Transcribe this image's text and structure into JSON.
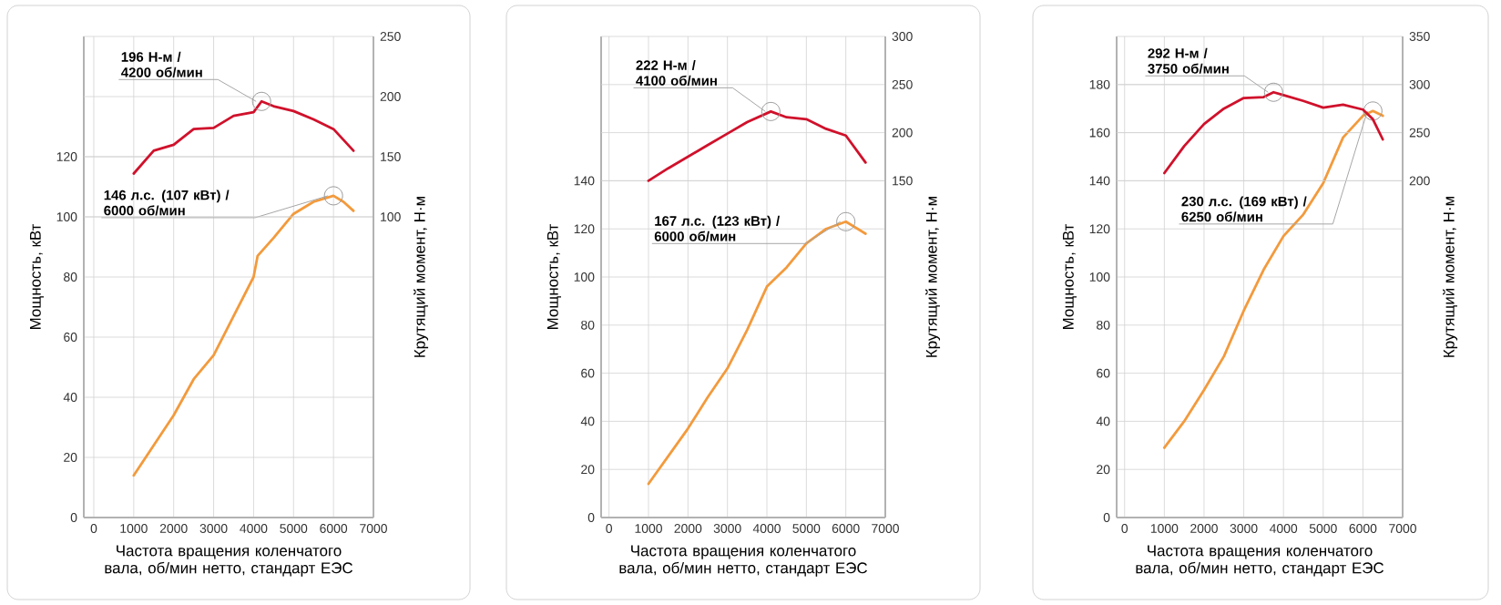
{
  "chart_data": [
    {
      "type": "line",
      "xlabel": "Частота вращения коленчатого вала, об/мин нетто, стандарт ЕЭС",
      "ylabel": "Мощность, кВт",
      "y2label": "Крутящий момент, Н·м",
      "xlim": [
        -250,
        7000
      ],
      "xticks": [
        0,
        1000,
        2000,
        3000,
        4000,
        5000,
        6000,
        7000
      ],
      "ylim": [
        0,
        160
      ],
      "yticks": [
        0,
        20,
        40,
        60,
        80,
        100,
        120
      ],
      "y2lim": [
        -150,
        250
      ],
      "y2ticks": [
        100,
        150,
        200,
        250
      ],
      "grid": true,
      "series": [
        {
          "color": "#d0112b",
          "axis": "y2",
          "x": [
            1000,
            1500,
            2000,
            2500,
            3000,
            3500,
            4000,
            4200,
            4500,
            5000,
            5500,
            6000,
            6500
          ],
          "values": [
            136,
            155,
            160,
            173,
            174,
            184,
            187,
            196,
            192,
            188,
            181,
            173,
            155
          ]
        },
        {
          "color": "#f39a3c",
          "x": [
            1000,
            1500,
            2000,
            2500,
            3000,
            3500,
            4000,
            4100,
            4500,
            5000,
            5500,
            6000,
            6250,
            6500
          ],
          "values": [
            14,
            24,
            34,
            46,
            54,
            67,
            80,
            87,
            93,
            101,
            105,
            107,
            105,
            102
          ]
        }
      ],
      "annotations": [
        "196 Н-м / 4200 об/мин",
        "146 л.с. (107 кВт) / 6000 об/мин"
      ]
    },
    {
      "type": "line",
      "xlabel": "Частота вращения коленчатого вала, об/мин нетто, стандарт ЕЭС",
      "ylabel": "Мощность, кВт",
      "y2label": "Крутящий момент, Н·м",
      "xlim": [
        -200,
        7000
      ],
      "xticks": [
        0,
        1000,
        2000,
        3000,
        4000,
        5000,
        6000,
        7000
      ],
      "ylim": [
        0,
        200
      ],
      "yticks": [
        0,
        20,
        40,
        60,
        80,
        100,
        120,
        140
      ],
      "y2lim": [
        -200,
        300
      ],
      "y2ticks": [
        150,
        200,
        250,
        300
      ],
      "grid": true,
      "series": [
        {
          "color": "#d0112b",
          "axis": "y2",
          "x": [
            1000,
            1500,
            2000,
            2500,
            3000,
            3500,
            4100,
            4500,
            5000,
            5500,
            6000,
            6500
          ],
          "values": [
            150,
            163,
            175,
            187,
            199,
            211,
            222,
            216,
            214,
            204,
            197,
            169
          ]
        },
        {
          "color": "#f39a3c",
          "x": [
            1000,
            2000,
            2500,
            3000,
            3500,
            4000,
            4500,
            5000,
            5500,
            6000,
            6500
          ],
          "values": [
            14,
            37,
            50,
            62,
            78,
            96,
            104,
            114,
            120,
            123,
            118
          ]
        }
      ],
      "annotations": [
        "222 Н-м / 4100 об/мин",
        "167 л.с. (123 кВт) / 6000 об/мин"
      ]
    },
    {
      "type": "line",
      "xlabel": "Частота вращения коленчатого вала, об/мин нетто, стандарт ЕЭС",
      "ylabel": "Мощность, кВт",
      "y2label": "Крутящий момент, Н·м",
      "xlim": [
        -200,
        7000
      ],
      "xticks": [
        0,
        1000,
        2000,
        3000,
        4000,
        5000,
        6000,
        7000
      ],
      "ylim": [
        0,
        200
      ],
      "yticks": [
        0,
        20,
        40,
        60,
        80,
        100,
        120,
        140,
        160,
        180
      ],
      "y2lim": [
        -150,
        350
      ],
      "y2ticks": [
        200,
        250,
        300,
        350
      ],
      "grid": true,
      "series": [
        {
          "color": "#d0112b",
          "axis": "y2",
          "x": [
            1000,
            1500,
            2000,
            2500,
            3000,
            3500,
            3750,
            4000,
            4500,
            5000,
            5500,
            6000,
            6250,
            6500
          ],
          "values": [
            208,
            236,
            259,
            275,
            286,
            287,
            292,
            289,
            283,
            276,
            279,
            274,
            264,
            243
          ]
        },
        {
          "color": "#f39a3c",
          "x": [
            1000,
            1500,
            2000,
            2500,
            3000,
            3500,
            4000,
            4500,
            5000,
            5500,
            6000,
            6250,
            6500
          ],
          "values": [
            29,
            40,
            53,
            67,
            86,
            103,
            117,
            126,
            139,
            158,
            167,
            169,
            167
          ]
        }
      ],
      "annotations": [
        "292 Н-м / 3750 об/мин",
        "230 л.с. (169 кВт) / 6250 об/мин"
      ]
    }
  ]
}
